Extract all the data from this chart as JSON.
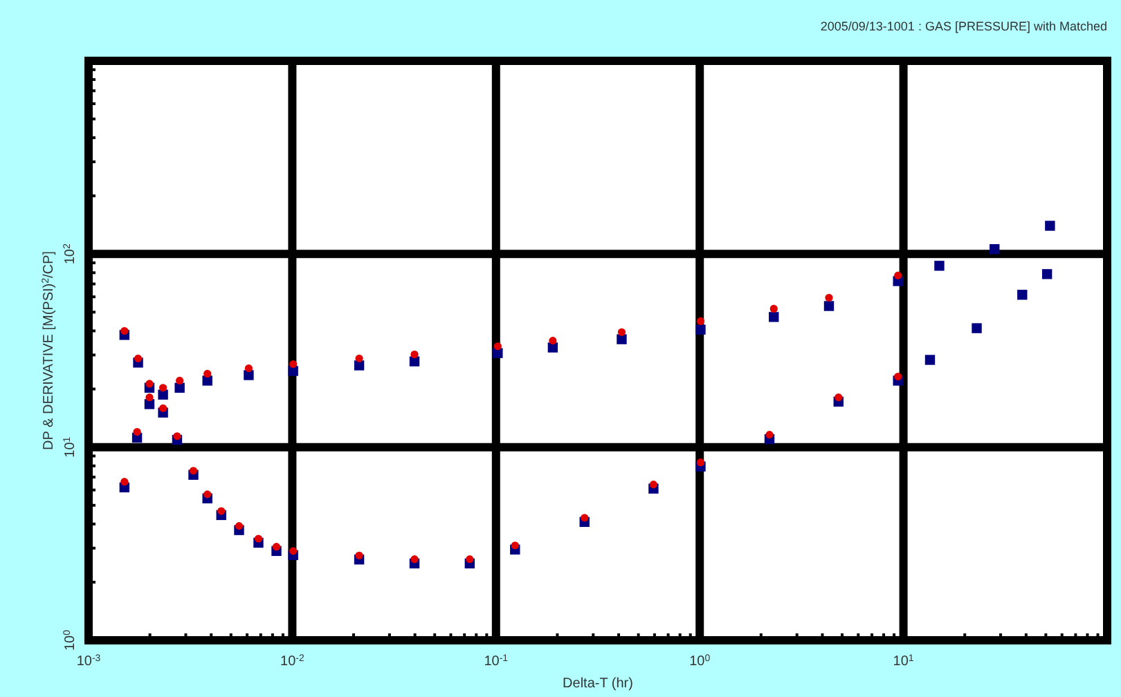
{
  "chart_data": {
    "type": "scatter",
    "title": "2005/09/13-1001 : GAS [PRESSURE] with Matched",
    "xlabel": "Delta-T (hr)",
    "ylabel": "DP & DERIVATIVE [M(PSI)$^{2}$/CP]",
    "log": "xy",
    "grid": true,
    "xlim": [
      0.001,
      100
    ],
    "ylim": [
      1,
      1000
    ],
    "xticks": [
      {
        "value": 0.001,
        "label": "10$^{-3}$"
      },
      {
        "value": 0.01,
        "label": "10$^{-2}$"
      },
      {
        "value": 0.1,
        "label": "10$^{-1}$"
      },
      {
        "value": 1,
        "label": "10$^{0}$"
      },
      {
        "value": 10,
        "label": "10$^{1}$"
      }
    ],
    "yticks": [
      {
        "value": 1,
        "label": "10$^{0}$"
      },
      {
        "value": 10,
        "label": "10$^{1}$"
      },
      {
        "value": 100,
        "label": "10$^{2}$"
      }
    ],
    "series": [
      {
        "color": "#000080",
        "marker": "square",
        "x": [
          0.0015,
          0.00173,
          0.00199,
          0.00232,
          0.0028,
          0.00383,
          0.00611,
          0.0101,
          0.0213,
          0.0398,
          0.102,
          0.19,
          0.414,
          1.01,
          2.31,
          4.31,
          9.4,
          15.0,
          28.0,
          52.4
        ],
        "values": [
          6.19,
          11.2,
          16.7,
          18.7,
          20.3,
          22.1,
          23.6,
          24.8,
          26.5,
          27.8,
          30.7,
          32.8,
          36.2,
          40.6,
          47.2,
          53.8,
          72.4,
          86.9,
          106,
          140
        ]
      },
      {
        "color": "#000080",
        "marker": "square",
        "x": [
          0.0015,
          0.00175,
          0.00199,
          0.00232,
          0.00272,
          0.00327,
          0.00383,
          0.00448,
          0.00548,
          0.00682,
          0.00836,
          0.0101,
          0.0213,
          0.0398,
          0.0743,
          0.124,
          0.272,
          0.593,
          1.01,
          2.2,
          4.8,
          9.4,
          13.5,
          22.9,
          38.3,
          50.7
        ],
        "values": [
          38.1,
          27.4,
          20.3,
          15.1,
          10.9,
          7.19,
          5.43,
          4.45,
          3.72,
          3.2,
          2.9,
          2.76,
          2.62,
          2.5,
          2.5,
          2.95,
          4.1,
          6.1,
          7.94,
          11.0,
          17.2,
          22.1,
          28.3,
          41.3,
          61.5,
          78.7
        ]
      },
      {
        "color": "#e00000",
        "marker": "circle",
        "x": [
          0.0015,
          0.00173,
          0.00199,
          0.00232,
          0.0028,
          0.00383,
          0.00611,
          0.0101,
          0.0213,
          0.0398,
          0.102,
          0.19,
          0.414,
          1.01,
          2.31,
          4.31,
          9.4
        ],
        "values": [
          6.62,
          12.0,
          18.1,
          20.3,
          22.1,
          24.0,
          25.6,
          26.9,
          28.8,
          30.2,
          33.3,
          35.6,
          39.4,
          44.9,
          52.1,
          59.4,
          77.4
        ]
      },
      {
        "color": "#e00000",
        "marker": "circle",
        "x": [
          0.0015,
          0.00175,
          0.00199,
          0.00232,
          0.00272,
          0.00327,
          0.00383,
          0.00448,
          0.00548,
          0.00682,
          0.00836,
          0.0101,
          0.0213,
          0.0398,
          0.0743,
          0.124,
          0.272,
          0.593,
          1.01,
          2.2,
          4.8,
          9.4
        ],
        "values": [
          40.0,
          28.8,
          21.3,
          15.9,
          11.4,
          7.55,
          5.7,
          4.67,
          3.91,
          3.36,
          3.05,
          2.9,
          2.75,
          2.63,
          2.63,
          3.1,
          4.31,
          6.41,
          8.34,
          11.6,
          18.1,
          23.2
        ]
      }
    ]
  }
}
